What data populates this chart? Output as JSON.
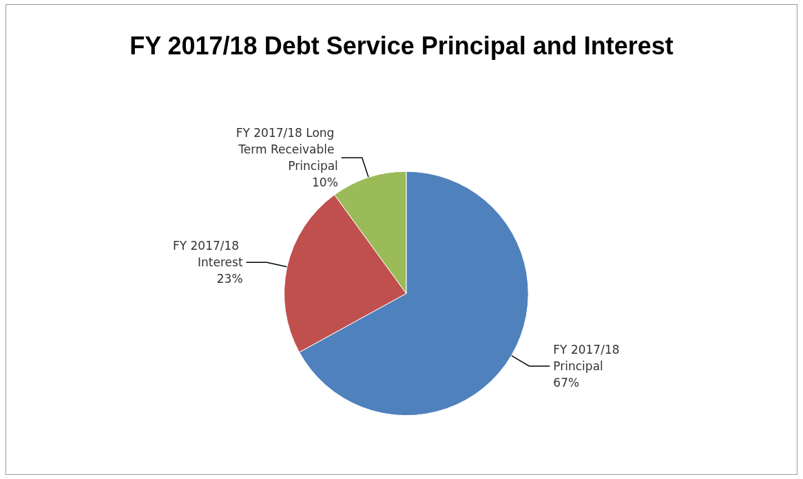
{
  "chart_data": {
    "type": "pie",
    "title": "FY 2017/18 Debt Service Principal and Interest",
    "categories": [
      "FY 2017/18 Principal",
      "FY 2017/18 Interest",
      "FY 2017/18 Long Term Receivable Principal"
    ],
    "values": [
      67,
      23,
      10
    ],
    "value_labels": [
      "67%",
      "23%",
      "10%"
    ],
    "colors": [
      "#4f81bd",
      "#c0504d",
      "#9bbb59"
    ],
    "legend": false
  }
}
